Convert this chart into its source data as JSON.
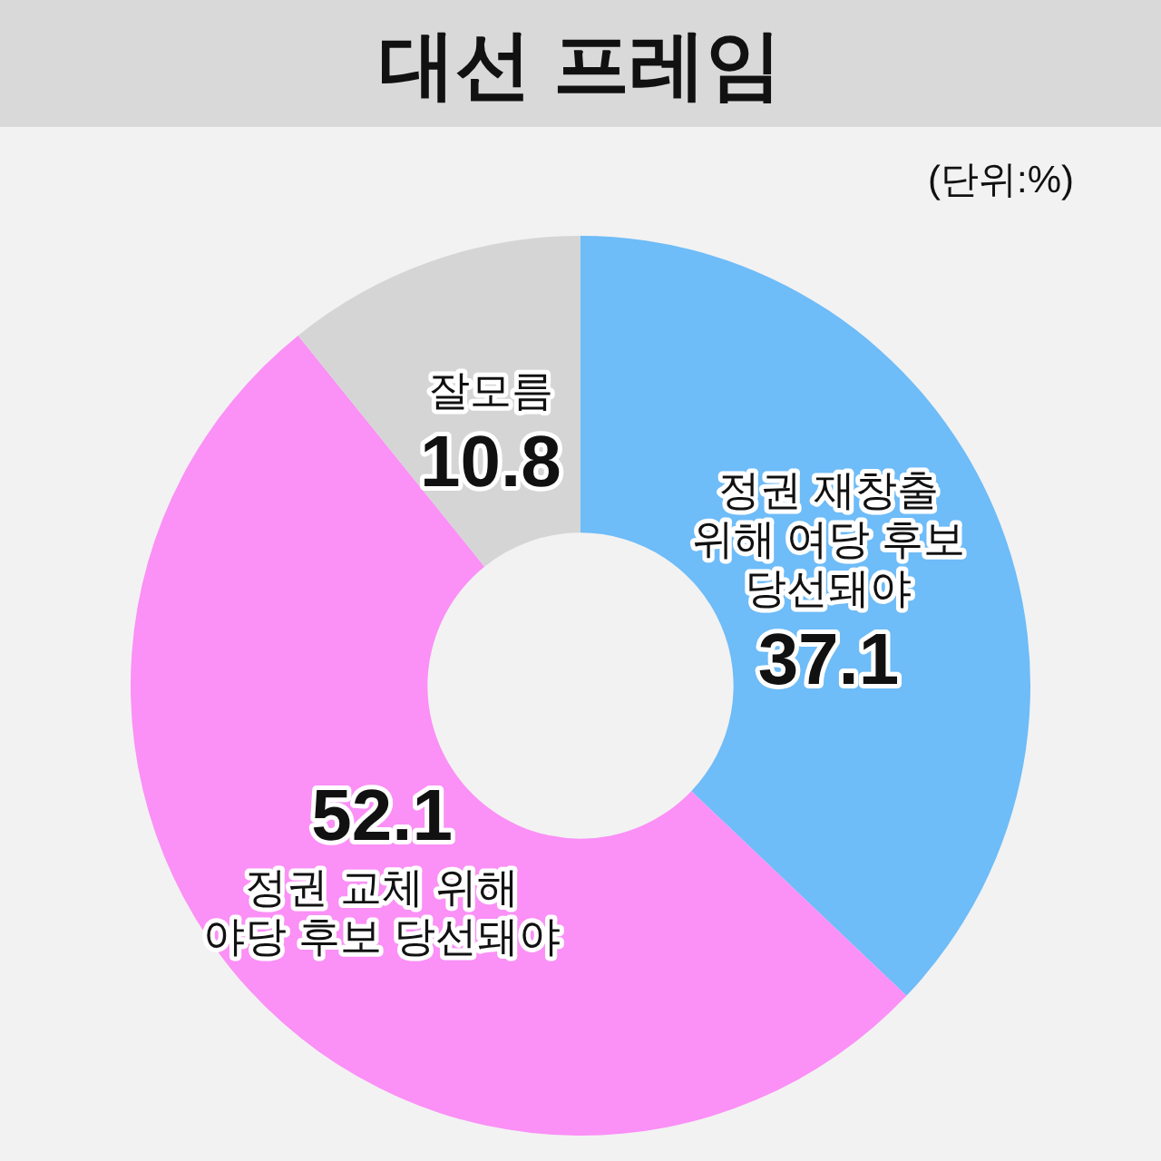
{
  "chart_data": {
    "type": "donut",
    "title": "대선 프레임",
    "annotations": [
      "(단위:%)"
    ],
    "categories": [
      "정권 재창출\n위해 여당 후보\n당선돼야",
      "정권 교체 위해\n야당 후보 당선돼야",
      "잘모름"
    ],
    "values": [
      37.1,
      52.1,
      10.8
    ],
    "colors": [
      "#6ebcf8",
      "#fb90f6",
      "#d5d5d5"
    ],
    "data_labels": true
  }
}
